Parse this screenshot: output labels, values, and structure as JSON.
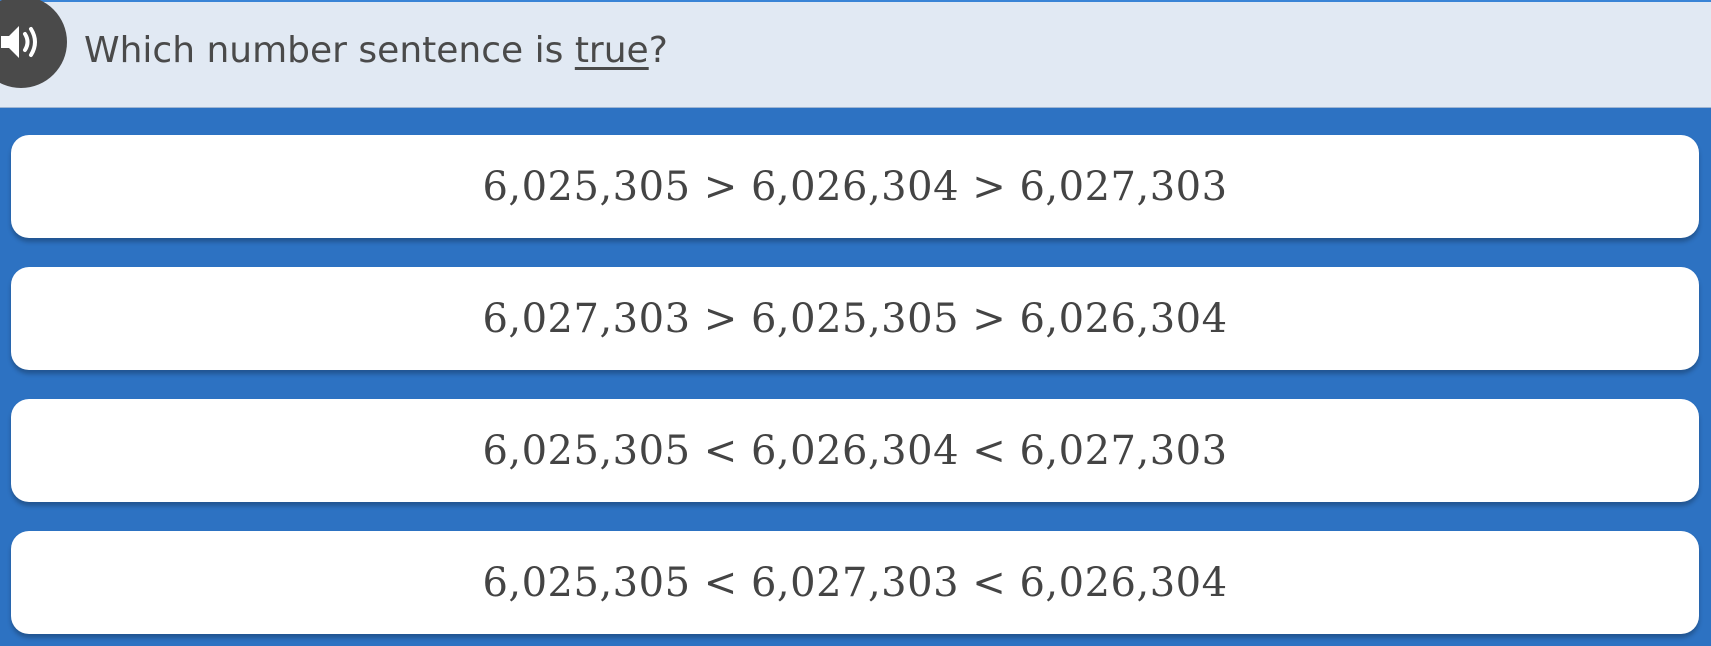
{
  "header": {
    "question_prefix": "Which number sentence is ",
    "question_emphasis": "true",
    "question_suffix": "?",
    "audio_icon": "speaker-icon"
  },
  "options": [
    {
      "label": "6,025,305 > 6,026,304 > 6,027,303"
    },
    {
      "label": "6,027,303 > 6,025,305 > 6,026,304"
    },
    {
      "label": "6,025,305 < 6,026,304 < 6,027,303"
    },
    {
      "label": "6,025,305 < 6,027,303 < 6,026,304"
    }
  ],
  "colors": {
    "background": "#2d72c2",
    "header": "#e1e9f3",
    "card": "#ffffff",
    "text": "#444444"
  }
}
